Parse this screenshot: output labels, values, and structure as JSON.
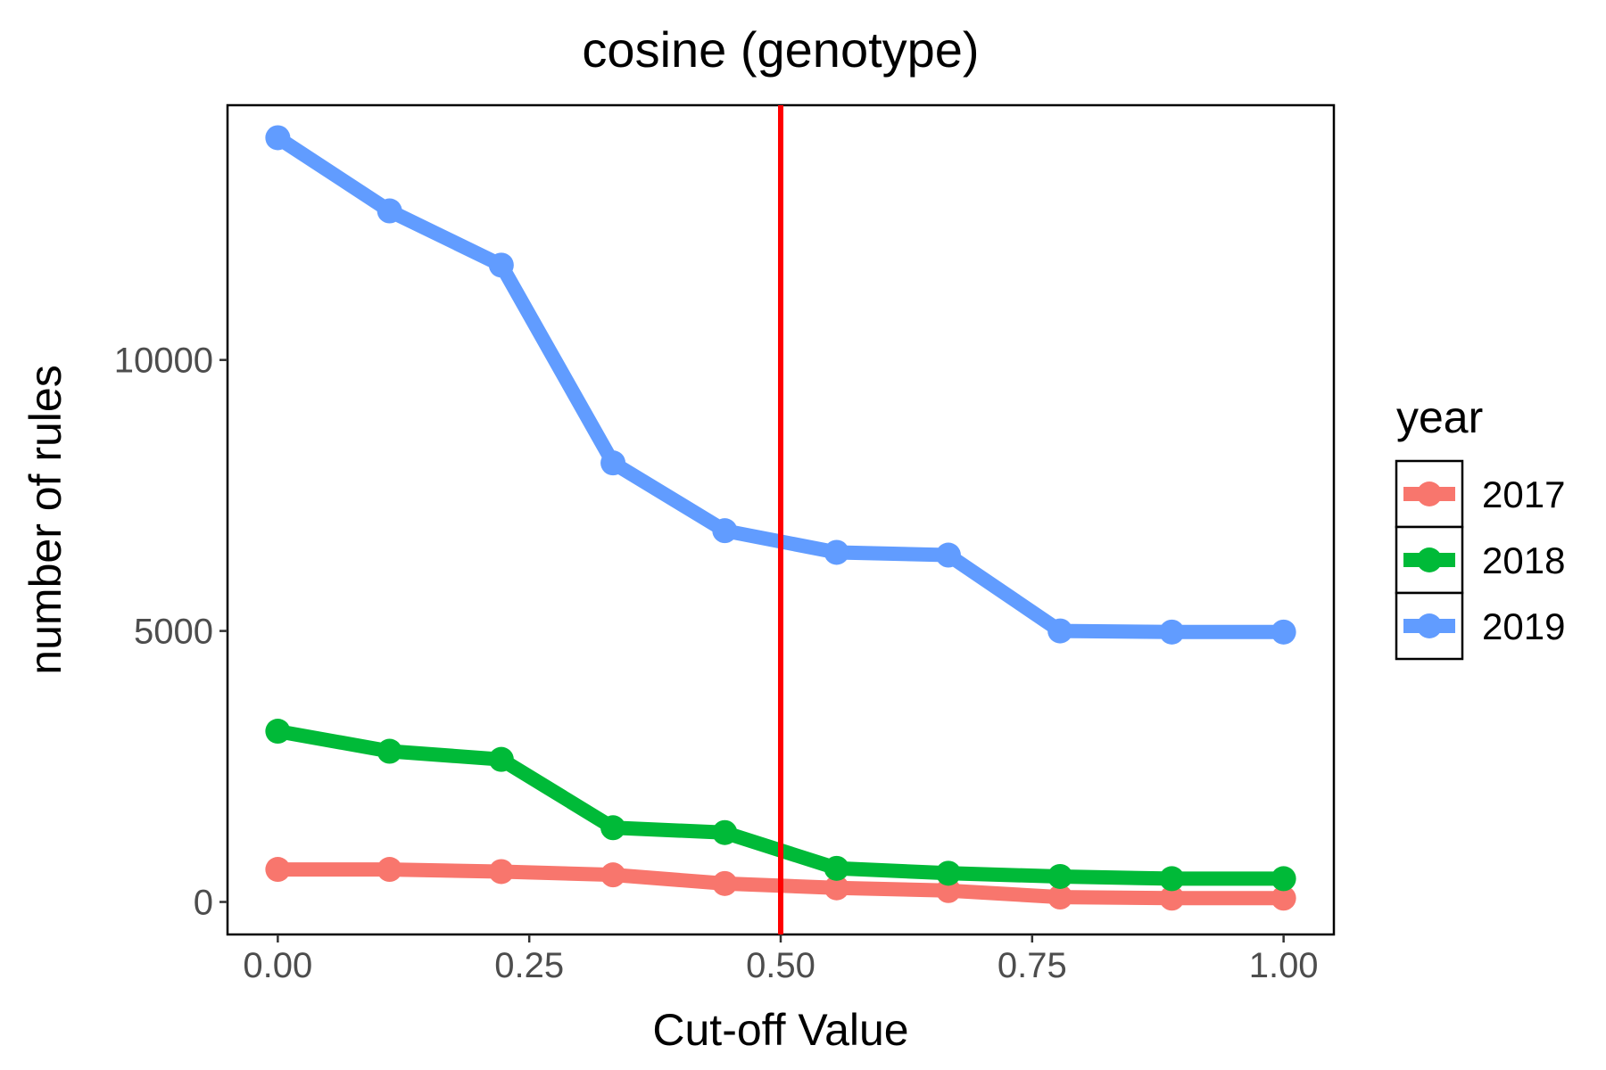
{
  "chart_data": {
    "type": "line",
    "title": "cosine (genotype)",
    "xlabel": "Cut-off Value",
    "ylabel": "number of rules",
    "x": [
      0,
      0.1111,
      0.2222,
      0.3333,
      0.4444,
      0.5556,
      0.6667,
      0.7778,
      0.8889,
      1.0
    ],
    "xlim": [
      -0.05,
      1.05
    ],
    "ylim": [
      -600,
      14700
    ],
    "x_ticks": [
      0,
      0.25,
      0.5,
      0.75,
      1.0
    ],
    "x_tick_labels": [
      "0.00",
      "0.25",
      "0.50",
      "0.75",
      "1.00"
    ],
    "y_ticks": [
      0,
      5000,
      10000
    ],
    "y_tick_labels": [
      "0",
      "5000",
      "10000"
    ],
    "series": [
      {
        "name": "2017",
        "color": "#F8766D",
        "values": [
          600,
          600,
          560,
          500,
          340,
          260,
          210,
          90,
          70,
          70
        ]
      },
      {
        "name": "2018",
        "color": "#00BA38",
        "values": [
          3150,
          2780,
          2630,
          1370,
          1280,
          620,
          530,
          470,
          430,
          430
        ]
      },
      {
        "name": "2019",
        "color": "#619CFF",
        "values": [
          14100,
          12750,
          11750,
          8100,
          6850,
          6450,
          6400,
          5000,
          4980,
          4980
        ]
      }
    ],
    "reference_line": {
      "x": 0.5,
      "color": "#FF0000"
    },
    "legend": {
      "title": "year",
      "placement": "right"
    },
    "grid": false
  }
}
